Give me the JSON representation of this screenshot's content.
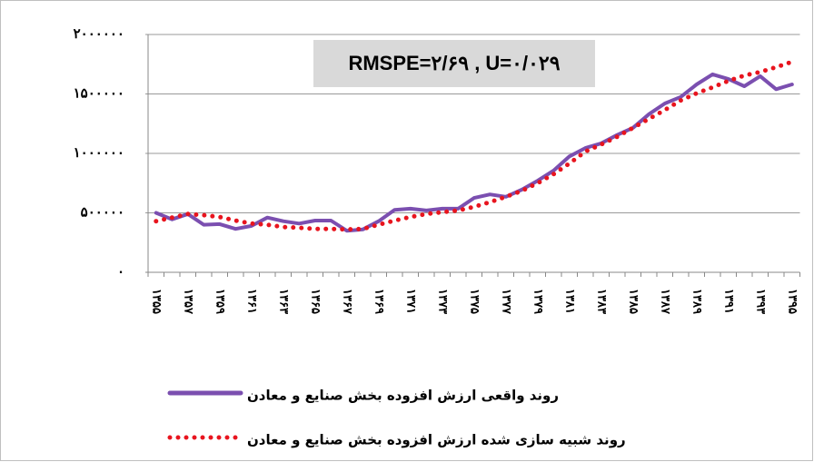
{
  "chart_data": {
    "type": "line",
    "title": "RMSPE=۲/۶۹ , U=۰/۰۲۹",
    "categories": [
      "۱۳۵۵",
      null,
      "۱۳۵۷",
      null,
      "۱۳۵۹",
      null,
      "۱۳۶۱",
      null,
      "۱۳۶۳",
      null,
      "۱۳۶۵",
      null,
      "۱۳۶۷",
      null,
      "۱۳۶۹",
      null,
      "۱۳۷۱",
      null,
      "۱۳۷۳",
      null,
      "۱۳۷۵",
      null,
      "۱۳۷۷",
      null,
      "۱۳۷۹",
      null,
      "۱۳۸۱",
      null,
      "۱۳۸۳",
      null,
      "۱۳۸۵",
      null,
      "۱۳۸۷",
      null,
      "۱۳۸۹",
      null,
      "۱۳۹۱",
      null,
      "۱۳۹۳",
      null,
      "۱۳۹۵"
    ],
    "series": [
      {
        "name": "روند واقعی ارزش افزوده بخش صنایع و معادن",
        "color": "#7b4fb0",
        "style": "solid",
        "values": [
          500000,
          445000,
          490000,
          400000,
          405000,
          365000,
          390000,
          460000,
          430000,
          410000,
          435000,
          435000,
          350000,
          360000,
          430000,
          525000,
          535000,
          520000,
          535000,
          535000,
          625000,
          655000,
          635000,
          695000,
          770000,
          855000,
          975000,
          1045000,
          1085000,
          1155000,
          1215000,
          1330000,
          1420000,
          1475000,
          1580000,
          1665000,
          1625000,
          1565000,
          1650000,
          1540000,
          1580000
        ]
      },
      {
        "name": "روند شبیه سازی شده ارزش افزوده بخش صنایع و معادن",
        "color": "#e8141e",
        "style": "dotted",
        "values": [
          430000,
          460000,
          490000,
          480000,
          465000,
          435000,
          410000,
          400000,
          380000,
          375000,
          365000,
          365000,
          360000,
          365000,
          400000,
          435000,
          465000,
          490000,
          505000,
          520000,
          550000,
          590000,
          635000,
          685000,
          750000,
          825000,
          915000,
          1015000,
          1075000,
          1140000,
          1215000,
          1290000,
          1365000,
          1445000,
          1505000,
          1555000,
          1610000,
          1655000,
          1685000,
          1725000,
          1770000
        ]
      }
    ],
    "ylim": [
      0,
      2000000
    ],
    "yticks": [
      {
        "value": 0,
        "label": "۰"
      },
      {
        "value": 500000,
        "label": "۵۰۰۰۰۰"
      },
      {
        "value": 1000000,
        "label": "۱۰۰۰۰۰۰"
      },
      {
        "value": 1500000,
        "label": "۱۵۰۰۰۰۰"
      },
      {
        "value": 2000000,
        "label": "۲۰۰۰۰۰۰"
      }
    ],
    "grid": true
  }
}
